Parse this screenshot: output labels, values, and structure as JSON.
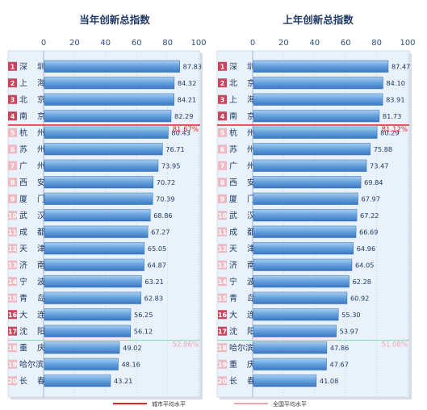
{
  "chart_data": [
    {
      "type": "bar",
      "orientation": "horizontal",
      "title": "当年创新总指数",
      "xlim": [
        0,
        100
      ],
      "xticks": [
        0,
        20,
        40,
        60,
        80,
        100
      ],
      "categories": [
        "深 圳",
        "上 海",
        "北 京",
        "南 京",
        "杭 州",
        "苏 州",
        "广 州",
        "西 安",
        "厦 门",
        "武 汉",
        "成 都",
        "天 津",
        "济 南",
        "宁 波",
        "青 岛",
        "大 连",
        "沈 阳",
        "重 庆",
        "哈尔滨",
        "长 春"
      ],
      "ranks": [
        "1",
        "2",
        "3",
        "4",
        "5",
        "6",
        "7",
        "8",
        "9",
        "10",
        "11",
        "12",
        "13",
        "14",
        "15",
        "16",
        "17",
        "18",
        "19",
        "20"
      ],
      "values": [
        87.83,
        84.32,
        84.21,
        82.29,
        80.43,
        76.71,
        73.95,
        70.72,
        70.39,
        68.86,
        67.27,
        65.05,
        64.87,
        63.21,
        62.83,
        56.25,
        56.12,
        49.02,
        48.16,
        43.21
      ],
      "value_labels": [
        "87.83",
        "84.32",
        "84.21",
        "82.29",
        "80.43",
        "76.71",
        "73.95",
        "70.72",
        "70.39",
        "68.86",
        "67.27",
        "65.05",
        "64.87",
        "63.21",
        "62.83",
        "56.25",
        "56.12",
        "49.02",
        "48.16",
        "43.21"
      ],
      "reference_lines": [
        {
          "name": "城市平均水平",
          "value": 81.67,
          "label": "81.67%",
          "color": "#e02525",
          "after_row": 4
        },
        {
          "name": "全国平均水平",
          "value": 52.86,
          "label": "52.86%",
          "color": "#f2a4ae",
          "after_row": 17
        }
      ]
    },
    {
      "type": "bar",
      "orientation": "horizontal",
      "title": "上年创新总指数",
      "xlim": [
        0,
        100
      ],
      "xticks": [
        0,
        20,
        40,
        60,
        80,
        100
      ],
      "categories": [
        "深 圳",
        "北 京",
        "上 海",
        "南 京",
        "杭 州",
        "苏 州",
        "广 州",
        "西 安",
        "厦 门",
        "武 汉",
        "成 都",
        "天 津",
        "济 南",
        "宁 波",
        "青 岛",
        "大 连",
        "沈 阳",
        "哈尔滨",
        "重 庆",
        "长 春"
      ],
      "ranks": [
        "1",
        "2",
        "3",
        "4",
        "5",
        "6",
        "7",
        "8",
        "9",
        "10",
        "11",
        "12",
        "13",
        "14",
        "15",
        "16",
        "17",
        "18",
        "19",
        "20"
      ],
      "values": [
        87.47,
        84.1,
        83.91,
        81.73,
        80.29,
        75.88,
        73.47,
        69.84,
        67.97,
        67.22,
        66.69,
        64.96,
        64.05,
        62.28,
        60.92,
        55.3,
        53.97,
        47.86,
        47.67,
        41.08
      ],
      "value_labels": [
        "87.47",
        "84.10",
        "83.91",
        "81.73",
        "80.29",
        "75.88",
        "73.47",
        "69.84",
        "67.97",
        "67.22",
        "66.69",
        "64.96",
        "64.05",
        "62.28",
        "60.92",
        "55.30",
        "53.97",
        "47.86",
        "47.67",
        "41.08"
      ],
      "reference_lines": [
        {
          "name": "城市平均水平",
          "value": 81.12,
          "label": "81.12%",
          "color": "#e02525",
          "after_row": 4
        },
        {
          "name": "全国平均水平",
          "value": 51.08,
          "label": "51.08%",
          "color": "#f2a4ae",
          "after_row": 17
        }
      ]
    }
  ],
  "legend": {
    "position": "bottom",
    "items": [
      {
        "label": "城市平均水平",
        "color": "#e02525"
      },
      {
        "label": "全国平均水平",
        "color": "#f2a4ae"
      }
    ]
  },
  "colors": {
    "bar_top": "#9cc7ef",
    "bar_bottom": "#3c7cc6",
    "panel_bg": "#e9f1fa",
    "rank_dark": "#c9455a",
    "rank_light": "#f2b8c2",
    "gridline": "#c7d7ea"
  }
}
